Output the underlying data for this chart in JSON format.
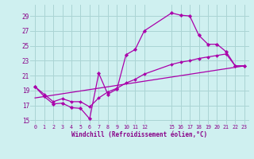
{
  "xlabel": "Windchill (Refroidissement éolien,°C)",
  "background_color": "#cff0f0",
  "grid_color": "#aad4d4",
  "line_color": "#aa00aa",
  "xlim": [
    -0.5,
    23.5
  ],
  "ylim": [
    14.5,
    30.5
  ],
  "xticks": [
    0,
    1,
    2,
    3,
    4,
    5,
    6,
    7,
    8,
    9,
    10,
    11,
    12,
    15,
    16,
    17,
    18,
    19,
    20,
    21,
    22,
    23
  ],
  "yticks": [
    15,
    17,
    19,
    21,
    23,
    25,
    27,
    29
  ],
  "line1_x": [
    0,
    1,
    2,
    3,
    4,
    5,
    6,
    7,
    8,
    9,
    10,
    11,
    12,
    15,
    16,
    17,
    18,
    19,
    20,
    21,
    22,
    23
  ],
  "line1_y": [
    19.5,
    18.2,
    17.2,
    17.3,
    16.7,
    16.6,
    15.2,
    21.3,
    18.5,
    19.2,
    23.8,
    24.5,
    27.0,
    29.4,
    29.1,
    29.0,
    26.4,
    25.2,
    25.2,
    24.2,
    22.3,
    22.3
  ],
  "line2_x": [
    0,
    1,
    2,
    3,
    4,
    5,
    6,
    7,
    8,
    9,
    10,
    11,
    12,
    15,
    16,
    17,
    18,
    19,
    20,
    21,
    22,
    23
  ],
  "line2_y": [
    19.5,
    18.5,
    17.5,
    17.9,
    17.5,
    17.5,
    16.8,
    18.0,
    18.8,
    19.3,
    20.0,
    20.5,
    21.2,
    22.5,
    22.8,
    23.0,
    23.3,
    23.5,
    23.7,
    23.9,
    22.3,
    22.3
  ],
  "line3_x": [
    0,
    23
  ],
  "line3_y": [
    18.0,
    22.3
  ]
}
